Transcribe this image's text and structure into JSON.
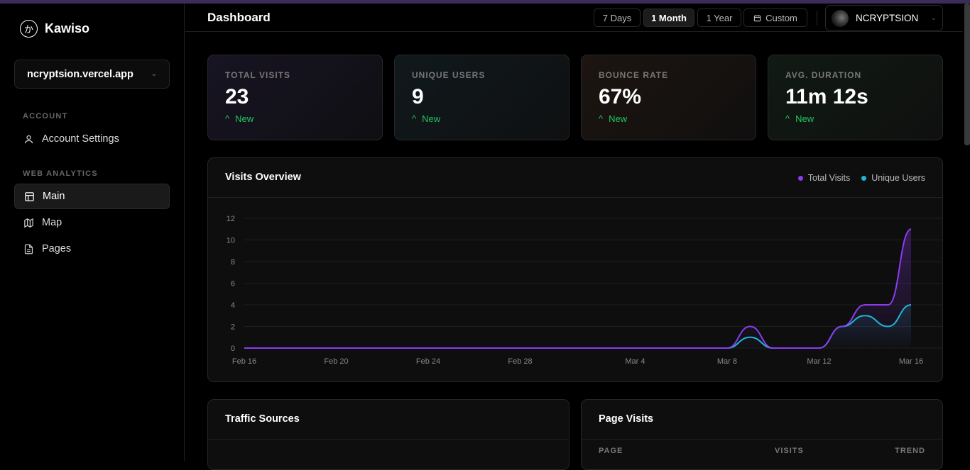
{
  "app": {
    "name": "Kawiso",
    "logo_glyph": "か"
  },
  "sidebar": {
    "site": "ncryptsion.vercel.app",
    "sections": [
      {
        "label": "ACCOUNT",
        "items": [
          {
            "label": "Account Settings",
            "icon": "user-icon"
          }
        ]
      },
      {
        "label": "WEB ANALYTICS",
        "items": [
          {
            "label": "Main",
            "icon": "layout-icon",
            "active": true
          },
          {
            "label": "Map",
            "icon": "map-icon"
          },
          {
            "label": "Pages",
            "icon": "file-icon"
          }
        ]
      }
    ]
  },
  "header": {
    "title": "Dashboard",
    "ranges": [
      "7 Days",
      "1 Month",
      "1 Year",
      "Custom"
    ],
    "active_range": "1 Month",
    "user": "NCRYPTSION"
  },
  "stats": [
    {
      "label": "TOTAL VISITS",
      "value": "23",
      "change": "New"
    },
    {
      "label": "UNIQUE USERS",
      "value": "9",
      "change": "New"
    },
    {
      "label": "BOUNCE RATE",
      "value": "67%",
      "change": "New"
    },
    {
      "label": "AVG. DURATION",
      "value": "11m 12s",
      "change": "New"
    }
  ],
  "colors": {
    "total": "#8b3cf0",
    "unique": "#1fb6d8",
    "positive": "#22c55e"
  },
  "chart_data": {
    "type": "line",
    "title": "Visits Overview",
    "x": [
      "Feb 16",
      "Feb 17",
      "Feb 18",
      "Feb 19",
      "Feb 20",
      "Feb 21",
      "Feb 22",
      "Feb 23",
      "Feb 24",
      "Feb 25",
      "Feb 26",
      "Feb 27",
      "Feb 28",
      "Feb 29",
      "Mar 1",
      "Mar 2",
      "Mar 3",
      "Mar 4",
      "Mar 5",
      "Mar 6",
      "Mar 7",
      "Mar 8",
      "Mar 9",
      "Mar 10",
      "Mar 11",
      "Mar 12",
      "Mar 13",
      "Mar 14",
      "Mar 15",
      "Mar 16"
    ],
    "xticks": [
      "Feb 16",
      "Feb 20",
      "Feb 24",
      "Feb 28",
      "Mar 4",
      "Mar 8",
      "Mar 12",
      "Mar 16"
    ],
    "yticks": [
      0,
      2,
      4,
      6,
      8,
      10,
      12
    ],
    "ylim": [
      0,
      12
    ],
    "grid": true,
    "legend": "top-right",
    "series": [
      {
        "name": "Total Visits",
        "values": [
          0,
          0,
          0,
          0,
          0,
          0,
          0,
          0,
          0,
          0,
          0,
          0,
          0,
          0,
          0,
          0,
          0,
          0,
          0,
          0,
          0,
          0,
          2,
          0,
          0,
          0,
          2,
          4,
          4,
          11
        ]
      },
      {
        "name": "Unique Users",
        "values": [
          0,
          0,
          0,
          0,
          0,
          0,
          0,
          0,
          0,
          0,
          0,
          0,
          0,
          0,
          0,
          0,
          0,
          0,
          0,
          0,
          0,
          0,
          1,
          0,
          0,
          0,
          2,
          3,
          2,
          4
        ]
      }
    ]
  },
  "traffic": {
    "title": "Traffic Sources"
  },
  "pages": {
    "title": "Page Visits",
    "columns": [
      "PAGE",
      "VISITS",
      "TREND"
    ]
  }
}
